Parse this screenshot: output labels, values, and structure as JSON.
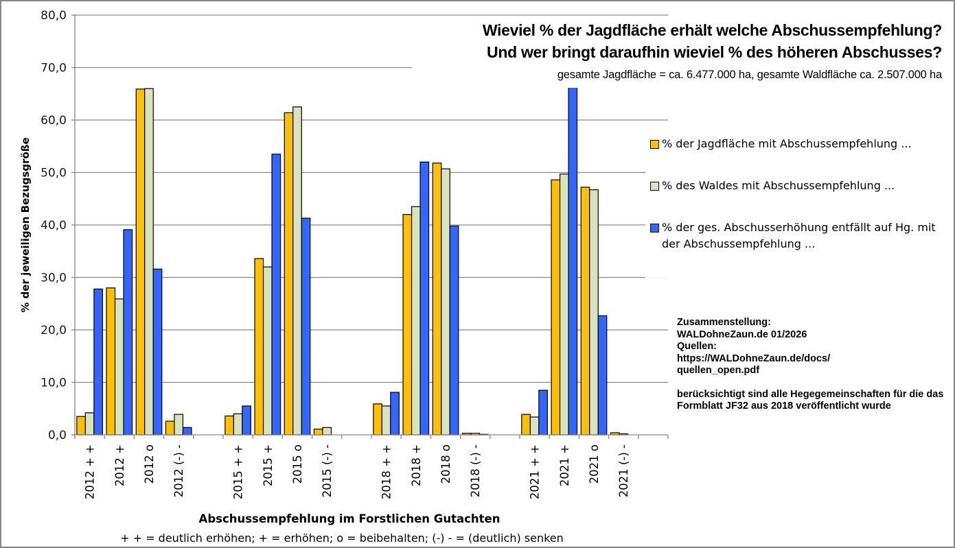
{
  "chart_data": {
    "type": "bar",
    "title": "Wieviel % der Jagdfläche erhält welche Abschussempfehlung?",
    "subtitle": "Und wer bringt daraufhin wieviel % des höheren Abschusses?",
    "subtitle2": "gesamte Jagdfläche = ca. 6.477.000 ha, gesamte Waldfläche ca. 2.507.000 ha",
    "ylabel": "% der jeweiligen Bezugsgröße",
    "xlabel": "Abschussempfehlung im Forstlichen Gutachten",
    "xlabel_note": "+ + = deutlich erhöhen; + = erhöhen; o = beibehalten; (-) - = (deutlich) senken",
    "ylim": [
      0,
      80
    ],
    "yticks": [
      "0,0",
      "10,0",
      "20,0",
      "30,0",
      "40,0",
      "50,0",
      "60,0",
      "70,0",
      "80,0"
    ],
    "grid": true,
    "legend_position": "right",
    "categories": [
      "2012 + +",
      "2012 +",
      "2012 o",
      "2012 (-) -",
      "",
      "2015 + +",
      "2015 +",
      "2015 o",
      "2015 (-) -",
      "",
      "2018 + +",
      "2018 +",
      "2018 o",
      "2018 (-) -",
      "",
      "2021 + +",
      "2021 +",
      "2021 o",
      "2021 (-) -",
      ""
    ],
    "series": [
      {
        "name": "% der Jagdfläche mit Abschussempfehlung ...",
        "color": "#FFC000",
        "values": [
          3.5,
          28.0,
          65.9,
          2.6,
          null,
          3.6,
          33.6,
          61.4,
          1.1,
          null,
          5.9,
          42.0,
          51.8,
          0.3,
          null,
          3.9,
          48.6,
          47.2,
          0.4,
          null
        ]
      },
      {
        "name": "% des Waldes mit Abschussempfehlung ...",
        "color": "#D8E4BC",
        "values": [
          4.2,
          25.9,
          66.0,
          3.9,
          null,
          4.0,
          32.0,
          62.5,
          1.4,
          null,
          5.5,
          43.5,
          50.7,
          0.3,
          null,
          3.4,
          49.7,
          46.7,
          0.2,
          null
        ]
      },
      {
        "name": "% der ges. Abschusserhöhung entfällt auf Hg. mit der Abschussempfehlung ...",
        "color": "#3366FF",
        "values": [
          27.8,
          39.1,
          31.6,
          1.4,
          null,
          5.5,
          53.5,
          41.3,
          0.0,
          null,
          8.1,
          52.0,
          39.8,
          0.1,
          null,
          8.5,
          67.0,
          22.7,
          0.0,
          null
        ]
      }
    ]
  },
  "legend": {
    "items": [
      {
        "label": "% der Jagdfläche mit Abschussempfehlung ...",
        "color": "#FFC000"
      },
      {
        "label": "% des Waldes mit Abschussempfehlung ...",
        "color": "#D8E4BC"
      },
      {
        "label": "% der ges. Abschusserhöhung entfällt auf Hg. mit der Abschussempfehlung ...",
        "color": "#3366FF"
      }
    ]
  },
  "notes": {
    "line1": "Zusammenstellung:",
    "line2": "WALDohneZaun.de 01/2026",
    "line3": "Quellen:",
    "line4": "https://WALDohneZaun.de/docs/",
    "line5": "quellen_open.pdf",
    "line6": "berücksichtigt sind alle Hegegemeinschaften für die das Formblatt JF32 aus 2018 veröffentlicht wurde"
  }
}
